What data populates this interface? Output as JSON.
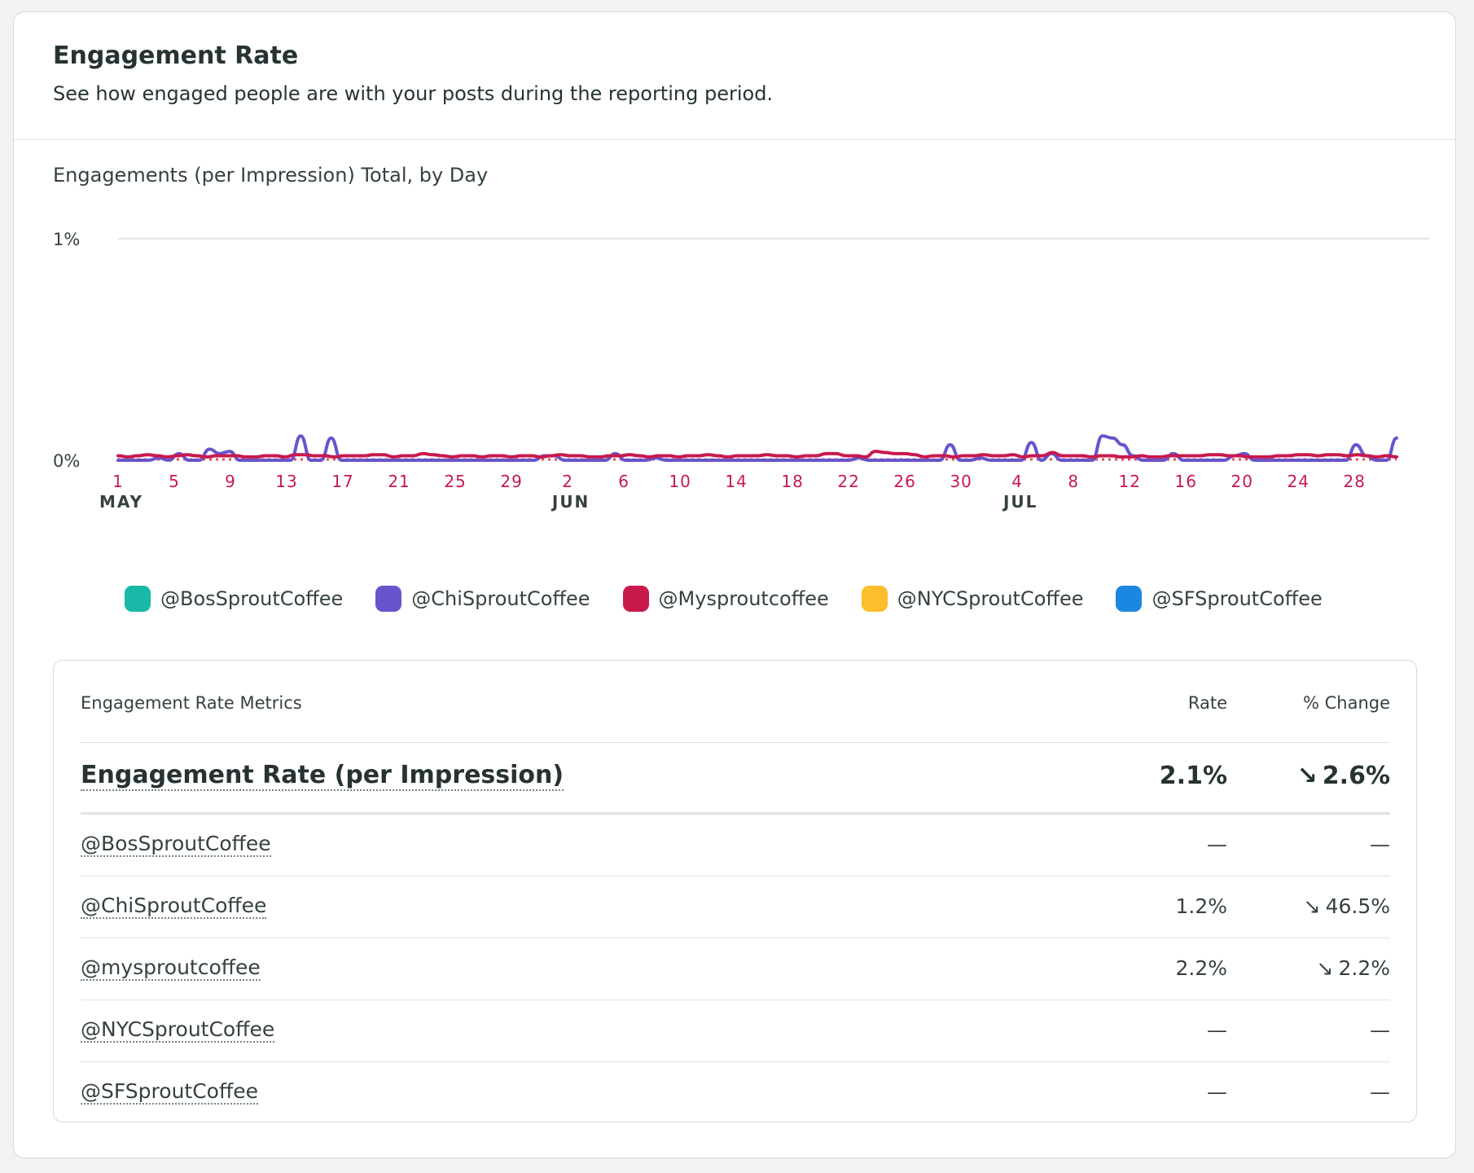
{
  "card": {
    "title": "Engagement Rate",
    "subtitle": "See how engaged people are with your posts during the reporting period."
  },
  "chart_data": {
    "type": "line",
    "title": "Engagements (per Impression) Total, by Day",
    "y_ticks": [
      "1%",
      "0%"
    ],
    "ylim": [
      0,
      1
    ],
    "x_ticks": [
      {
        "day": "1",
        "month": "MAY"
      },
      {
        "day": "5"
      },
      {
        "day": "9"
      },
      {
        "day": "13"
      },
      {
        "day": "17"
      },
      {
        "day": "21"
      },
      {
        "day": "25"
      },
      {
        "day": "29"
      },
      {
        "day": "2",
        "month": "JUN"
      },
      {
        "day": "6"
      },
      {
        "day": "10"
      },
      {
        "day": "14"
      },
      {
        "day": "18"
      },
      {
        "day": "22"
      },
      {
        "day": "26"
      },
      {
        "day": "30"
      },
      {
        "day": "4",
        "month": "JUL"
      },
      {
        "day": "8"
      },
      {
        "day": "12"
      },
      {
        "day": "16"
      },
      {
        "day": "20"
      },
      {
        "day": "24"
      },
      {
        "day": "28"
      }
    ],
    "tick_color": "#c8194d",
    "grid": true,
    "legend_position": "bottom",
    "series": [
      {
        "name": "@BosSproutCoffee",
        "color": "#19b8a8",
        "values": []
      },
      {
        "name": "@ChiSproutCoffee",
        "color": "#6655cc",
        "values": [
          0,
          0,
          0,
          0,
          0.01,
          0,
          0.03,
          0,
          0,
          0.05,
          0.03,
          0.04,
          0,
          0,
          0,
          0,
          0,
          0,
          0.11,
          0,
          0,
          0.1,
          0,
          0,
          0,
          0,
          0,
          0,
          0,
          0,
          0,
          0,
          0,
          0,
          0,
          0,
          0,
          0,
          0,
          0,
          0,
          0,
          0.02,
          0.02,
          0,
          0,
          0,
          0,
          0,
          0.03,
          0,
          0,
          0,
          0.01,
          0,
          0,
          0,
          0,
          0,
          0,
          0,
          0,
          0,
          0,
          0,
          0,
          0,
          0,
          0,
          0,
          0,
          0,
          0,
          0.01,
          0,
          0,
          0,
          0,
          0,
          0,
          0,
          0,
          0.07,
          0,
          0,
          0.01,
          0,
          0,
          0,
          0,
          0.08,
          0,
          0.03,
          0,
          0,
          0,
          0,
          0.11,
          0.1,
          0.07,
          0.02,
          0,
          0,
          0,
          0.03,
          0,
          0,
          0,
          0,
          0,
          0.02,
          0.03,
          0,
          0,
          0,
          0,
          0,
          0,
          0,
          0,
          0,
          0,
          0.07,
          0.02,
          0,
          0,
          0.1
        ]
      },
      {
        "name": "@Mysproutcoffee",
        "color": "#c8194d",
        "values": [
          0.02,
          0.015,
          0.02,
          0.025,
          0.02,
          0.015,
          0.02,
          0.025,
          0.02,
          0.015,
          0.02,
          0.02,
          0.02,
          0.015,
          0.015,
          0.02,
          0.02,
          0.015,
          0.025,
          0.025,
          0.02,
          0.02,
          0.015,
          0.02,
          0.02,
          0.02,
          0.025,
          0.025,
          0.015,
          0.02,
          0.02,
          0.03,
          0.025,
          0.02,
          0.015,
          0.02,
          0.02,
          0.015,
          0.02,
          0.02,
          0.015,
          0.02,
          0.02,
          0.015,
          0.02,
          0.025,
          0.02,
          0.02,
          0.015,
          0.015,
          0.02,
          0.02,
          0.025,
          0.02,
          0.015,
          0.02,
          0.02,
          0.015,
          0.02,
          0.02,
          0.025,
          0.02,
          0.015,
          0.02,
          0.02,
          0.02,
          0.025,
          0.02,
          0.02,
          0.015,
          0.02,
          0.02,
          0.03,
          0.03,
          0.02,
          0.02,
          0.015,
          0.04,
          0.035,
          0.03,
          0.03,
          0.025,
          0.015,
          0.02,
          0.02,
          0.015,
          0.02,
          0.02,
          0.025,
          0.02,
          0.02,
          0.025,
          0.015,
          0.02,
          0.02,
          0.035,
          0.02,
          0.02,
          0.02,
          0.015,
          0.02,
          0.02,
          0.015,
          0.015,
          0.02,
          0.015,
          0.015,
          0.02,
          0.02,
          0.02,
          0.02,
          0.025,
          0.025,
          0.02,
          0.02,
          0.015,
          0.015,
          0.015,
          0.02,
          0.02,
          0.025,
          0.025,
          0.02,
          0.025,
          0.025,
          0.02,
          0.025,
          0.02,
          0.015,
          0.02,
          0.015
        ]
      },
      {
        "name": "@NYCSproutCoffee",
        "color": "#fcbe2c",
        "values": []
      },
      {
        "name": "@SFSproutCoffee",
        "color": "#1c87e0",
        "values": []
      }
    ]
  },
  "metrics": {
    "header": {
      "label": "Engagement Rate Metrics",
      "rate": "Rate",
      "change": "% Change"
    },
    "total": {
      "label": "Engagement Rate (per Impression)",
      "rate": "2.1%",
      "change": "2.6%",
      "change_arrow": "↘"
    },
    "rows": [
      {
        "label": "@BosSproutCoffee",
        "rate": "—",
        "change": "—",
        "change_arrow": ""
      },
      {
        "label": "@ChiSproutCoffee",
        "rate": "1.2%",
        "change": "46.5%",
        "change_arrow": "↘"
      },
      {
        "label": "@mysproutcoffee",
        "rate": "2.2%",
        "change": "2.2%",
        "change_arrow": "↘"
      },
      {
        "label": "@NYCSproutCoffee",
        "rate": "—",
        "change": "—",
        "change_arrow": ""
      },
      {
        "label": "@SFSproutCoffee",
        "rate": "—",
        "change": "—",
        "change_arrow": ""
      }
    ]
  }
}
